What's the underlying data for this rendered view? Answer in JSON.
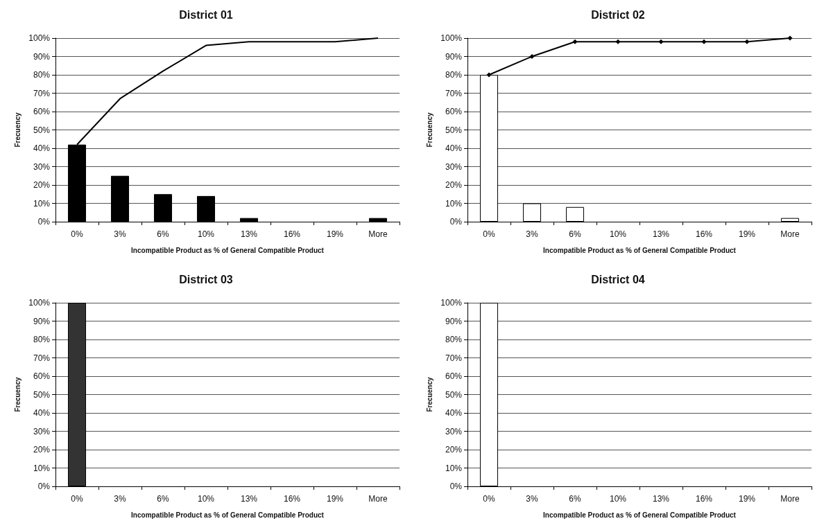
{
  "chart_data": [
    {
      "type": "bar",
      "title": "District 01",
      "xlabel": "Incompatible Product as % of General Compatible Product",
      "ylabel": "Frecuency",
      "categories": [
        "0%",
        "3%",
        "6%",
        "10%",
        "13%",
        "16%",
        "19%",
        "More"
      ],
      "series": [
        {
          "color": "#000000",
          "values": [
            42,
            25,
            15,
            14,
            2,
            0,
            0,
            2
          ]
        },
        {
          "type": "line",
          "color": "#000000",
          "marker": "none",
          "values": [
            42,
            67,
            82,
            96,
            98,
            98,
            98,
            100
          ]
        }
      ],
      "ylim": [
        0,
        100
      ],
      "yticks": [
        {
          "value": 0,
          "label": "0%"
        },
        {
          "value": 10,
          "label": "10%"
        },
        {
          "value": 20,
          "label": "20%"
        },
        {
          "value": 30,
          "label": "30%"
        },
        {
          "value": 40,
          "label": "40%"
        },
        {
          "value": 50,
          "label": "50%"
        },
        {
          "value": 60,
          "label": "60%"
        },
        {
          "value": 70,
          "label": "70%"
        },
        {
          "value": 80,
          "label": "80%"
        },
        {
          "value": 90,
          "label": "90%"
        },
        {
          "value": 100,
          "label": "100%"
        }
      ],
      "grid": "y"
    },
    {
      "type": "bar",
      "title": "District 02",
      "xlabel": "Incompatible Product as % of General Compatible Product",
      "ylabel": "Frecuency",
      "categories": [
        "0%",
        "3%",
        "6%",
        "10%",
        "13%",
        "16%",
        "19%",
        "More"
      ],
      "series": [
        {
          "color": "#ffffff",
          "values": [
            80,
            10,
            8,
            0,
            0,
            0,
            0,
            2
          ]
        },
        {
          "type": "line",
          "color": "#000000",
          "marker": "diamond",
          "values": [
            80,
            90,
            98,
            98,
            98,
            98,
            98,
            100
          ]
        }
      ],
      "ylim": [
        0,
        100
      ],
      "yticks": [
        {
          "value": 0,
          "label": "0%"
        },
        {
          "value": 10,
          "label": "10%"
        },
        {
          "value": 20,
          "label": "20%"
        },
        {
          "value": 30,
          "label": "30%"
        },
        {
          "value": 40,
          "label": "40%"
        },
        {
          "value": 50,
          "label": "50%"
        },
        {
          "value": 60,
          "label": "60%"
        },
        {
          "value": 70,
          "label": "70%"
        },
        {
          "value": 80,
          "label": "80%"
        },
        {
          "value": 90,
          "label": "90%"
        },
        {
          "value": 100,
          "label": "100%"
        }
      ],
      "grid": "y"
    },
    {
      "type": "bar",
      "title": "District 03",
      "xlabel": "Incompatible Product as % of General Compatible Product",
      "ylabel": "Frecuency",
      "categories": [
        "0%",
        "3%",
        "6%",
        "10%",
        "13%",
        "16%",
        "19%",
        "More"
      ],
      "series": [
        {
          "color": "#333333",
          "values": [
            100,
            0,
            0,
            0,
            0,
            0,
            0,
            0
          ]
        }
      ],
      "ylim": [
        0,
        100
      ],
      "yticks": [
        {
          "value": 0,
          "label": "0%"
        },
        {
          "value": 10,
          "label": "10%"
        },
        {
          "value": 20,
          "label": "20%"
        },
        {
          "value": 30,
          "label": "30%"
        },
        {
          "value": 40,
          "label": "40%"
        },
        {
          "value": 50,
          "label": "50%"
        },
        {
          "value": 60,
          "label": "60%"
        },
        {
          "value": 70,
          "label": "70%"
        },
        {
          "value": 80,
          "label": "80%"
        },
        {
          "value": 90,
          "label": "90%"
        },
        {
          "value": 100,
          "label": "100%"
        }
      ],
      "grid": "y"
    },
    {
      "type": "bar",
      "title": "District 04",
      "xlabel": "Incompatible Product as % of General Compatible Product",
      "ylabel": "Frecuency",
      "categories": [
        "0%",
        "3%",
        "6%",
        "10%",
        "13%",
        "16%",
        "19%",
        "More"
      ],
      "series": [
        {
          "color": "#ffffff",
          "values": [
            100,
            0,
            0,
            0,
            0,
            0,
            0,
            0
          ]
        }
      ],
      "ylim": [
        0,
        100
      ],
      "yticks": [
        {
          "value": 0,
          "label": "0%"
        },
        {
          "value": 10,
          "label": "10%"
        },
        {
          "value": 20,
          "label": "20%"
        },
        {
          "value": 30,
          "label": "30%"
        },
        {
          "value": 40,
          "label": "40%"
        },
        {
          "value": 50,
          "label": "50%"
        },
        {
          "value": 60,
          "label": "60%"
        },
        {
          "value": 70,
          "label": "70%"
        },
        {
          "value": 80,
          "label": "80%"
        },
        {
          "value": 90,
          "label": "90%"
        },
        {
          "value": 100,
          "label": "100%"
        }
      ],
      "grid": "y"
    }
  ]
}
